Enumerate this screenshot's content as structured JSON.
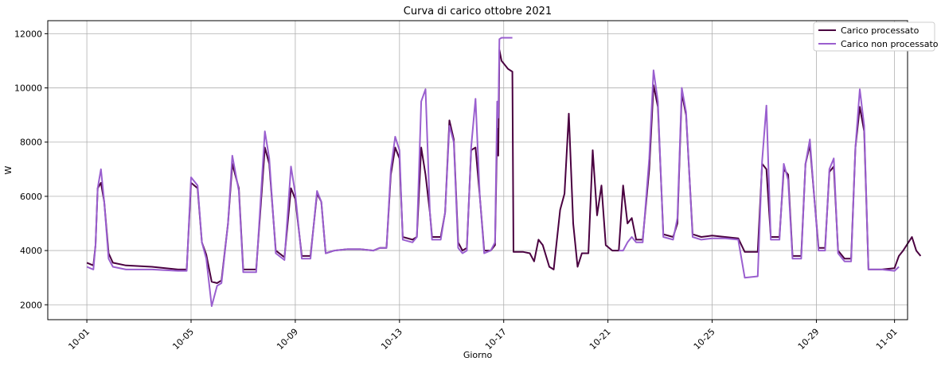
{
  "chart_data": {
    "type": "line",
    "title": "Curva di carico ottobre 2021",
    "xlabel": "Giorno",
    "ylabel": "W",
    "xlim": [
      "2021-09-29T12:00",
      "2021-11-01T12:00"
    ],
    "ylim": [
      1450,
      12480
    ],
    "x_ticks": [
      "10-01",
      "10-05",
      "10-09",
      "10-13",
      "10-17",
      "10-21",
      "10-25",
      "10-29",
      "11-01"
    ],
    "y_ticks": [
      2000,
      4000,
      6000,
      8000,
      10000,
      12000
    ],
    "grid": true,
    "legend_position": "top-right",
    "series": [
      {
        "name": "Carico processato",
        "color": "#4a0040",
        "points": [
          [
            "2021-10-01T00:00",
            3550
          ],
          [
            "2021-10-01T06:00",
            3450
          ],
          [
            "2021-10-01T08:00",
            4200
          ],
          [
            "2021-10-01T10:00",
            6300
          ],
          [
            "2021-10-01T13:00",
            6500
          ],
          [
            "2021-10-01T16:00",
            5800
          ],
          [
            "2021-10-01T20:00",
            3900
          ],
          [
            "2021-10-02T00:00",
            3550
          ],
          [
            "2021-10-02T12:00",
            3450
          ],
          [
            "2021-10-03T12:00",
            3400
          ],
          [
            "2021-10-04T12:00",
            3300
          ],
          [
            "2021-10-04T20:00",
            3300
          ],
          [
            "2021-10-05T00:00",
            6500
          ],
          [
            "2021-10-05T06:00",
            6300
          ],
          [
            "2021-10-05T10:00",
            4300
          ],
          [
            "2021-10-05T14:00",
            3850
          ],
          [
            "2021-10-05T19:00",
            2850
          ],
          [
            "2021-10-06T00:00",
            2800
          ],
          [
            "2021-10-06T04:00",
            2900
          ],
          [
            "2021-10-06T10:00",
            5000
          ],
          [
            "2021-10-06T14:00",
            7200
          ],
          [
            "2021-10-06T20:00",
            6300
          ],
          [
            "2021-10-07T00:00",
            3300
          ],
          [
            "2021-10-07T12:00",
            3300
          ],
          [
            "2021-10-07T20:00",
            7800
          ],
          [
            "2021-10-08T00:00",
            7200
          ],
          [
            "2021-10-08T06:00",
            4000
          ],
          [
            "2021-10-08T14:00",
            3750
          ],
          [
            "2021-10-08T20:00",
            6300
          ],
          [
            "2021-10-09T00:00",
            5900
          ],
          [
            "2021-10-09T06:00",
            3800
          ],
          [
            "2021-10-09T14:00",
            3800
          ],
          [
            "2021-10-09T20:00",
            6100
          ],
          [
            "2021-10-10T00:00",
            5800
          ],
          [
            "2021-10-10T04:00",
            3900
          ],
          [
            "2021-10-10T12:00",
            4000
          ],
          [
            "2021-10-11T00:00",
            4050
          ],
          [
            "2021-10-11T12:00",
            4050
          ],
          [
            "2021-10-12T00:00",
            4000
          ],
          [
            "2021-10-12T06:00",
            4100
          ],
          [
            "2021-10-12T12:00",
            4100
          ],
          [
            "2021-10-12T16:00",
            6800
          ],
          [
            "2021-10-12T20:00",
            7800
          ],
          [
            "2021-10-13T00:00",
            7400
          ],
          [
            "2021-10-13T03:00",
            4500
          ],
          [
            "2021-10-13T12:00",
            4400
          ],
          [
            "2021-10-13T16:00",
            4500
          ],
          [
            "2021-10-13T20:00",
            7800
          ],
          [
            "2021-10-14T00:00",
            6800
          ],
          [
            "2021-10-14T04:00",
            5400
          ],
          [
            "2021-10-14T06:00",
            4500
          ],
          [
            "2021-10-14T14:00",
            4500
          ],
          [
            "2021-10-14T18:00",
            5400
          ],
          [
            "2021-10-14T22:00",
            8800
          ],
          [
            "2021-10-15T02:00",
            8100
          ],
          [
            "2021-10-15T06:00",
            4300
          ],
          [
            "2021-10-15T10:00",
            4000
          ],
          [
            "2021-10-15T14:00",
            4100
          ],
          [
            "2021-10-15T18:00",
            7700
          ],
          [
            "2021-10-15T22:00",
            7800
          ],
          [
            "2021-10-16T02:00",
            6000
          ],
          [
            "2021-10-16T06:00",
            4000
          ],
          [
            "2021-10-16T12:00",
            4000
          ],
          [
            "2021-10-16T16:00",
            4200
          ],
          [
            "2021-10-16T18:00",
            8500
          ],
          [
            "2021-10-16T19:00",
            7500
          ],
          [
            "2021-10-16T20:00",
            11400
          ],
          [
            "2021-10-16T22:00",
            11000
          ],
          [
            "2021-10-17T04:00",
            10700
          ],
          [
            "2021-10-17T08:00",
            10600
          ],
          [
            "2021-10-17T09:00",
            3950
          ],
          [
            "2021-10-17T18:00",
            3950
          ],
          [
            "2021-10-18T00:00",
            3900
          ],
          [
            "2021-10-18T04:00",
            3600
          ],
          [
            "2021-10-18T08:00",
            4400
          ],
          [
            "2021-10-18T12:00",
            4200
          ],
          [
            "2021-10-18T18:00",
            3400
          ],
          [
            "2021-10-18T22:00",
            3300
          ],
          [
            "2021-10-19T04:00",
            5500
          ],
          [
            "2021-10-19T08:00",
            6100
          ],
          [
            "2021-10-19T12:00",
            9050
          ],
          [
            "2021-10-19T16:00",
            5000
          ],
          [
            "2021-10-19T20:00",
            3400
          ],
          [
            "2021-10-20T00:00",
            3900
          ],
          [
            "2021-10-20T06:00",
            3900
          ],
          [
            "2021-10-20T10:00",
            7700
          ],
          [
            "2021-10-20T14:00",
            5300
          ],
          [
            "2021-10-20T18:00",
            6400
          ],
          [
            "2021-10-20T22:00",
            4200
          ],
          [
            "2021-10-21T04:00",
            4000
          ],
          [
            "2021-10-21T10:00",
            4000
          ],
          [
            "2021-10-21T14:00",
            6400
          ],
          [
            "2021-10-21T18:00",
            5000
          ],
          [
            "2021-10-21T22:00",
            5200
          ],
          [
            "2021-10-22T02:00",
            4400
          ],
          [
            "2021-10-22T08:00",
            4400
          ],
          [
            "2021-10-22T14:00",
            7000
          ],
          [
            "2021-10-22T18:00",
            10100
          ],
          [
            "2021-10-22T22:00",
            9300
          ],
          [
            "2021-10-23T03:00",
            4600
          ],
          [
            "2021-10-23T12:00",
            4500
          ],
          [
            "2021-10-23T16:00",
            5000
          ],
          [
            "2021-10-23T20:00",
            9800
          ],
          [
            "2021-10-24T00:00",
            9000
          ],
          [
            "2021-10-24T06:00",
            4600
          ],
          [
            "2021-10-24T14:00",
            4500
          ],
          [
            "2021-10-25T00:00",
            4550
          ],
          [
            "2021-10-25T12:00",
            4500
          ],
          [
            "2021-10-26T00:00",
            4450
          ],
          [
            "2021-10-26T06:00",
            3950
          ],
          [
            "2021-10-26T18:00",
            3950
          ],
          [
            "2021-10-26T22:00",
            7200
          ],
          [
            "2021-10-27T02:00",
            7000
          ],
          [
            "2021-10-27T06:00",
            4500
          ],
          [
            "2021-10-27T14:00",
            4500
          ],
          [
            "2021-10-27T18:00",
            7000
          ],
          [
            "2021-10-27T22:00",
            6800
          ],
          [
            "2021-10-28T02:00",
            3800
          ],
          [
            "2021-10-28T10:00",
            3800
          ],
          [
            "2021-10-28T14:00",
            7200
          ],
          [
            "2021-10-28T18:00",
            7900
          ],
          [
            "2021-10-28T22:00",
            6000
          ],
          [
            "2021-10-29T02:00",
            4100
          ],
          [
            "2021-10-29T08:00",
            4100
          ],
          [
            "2021-10-29T12:00",
            6900
          ],
          [
            "2021-10-29T16:00",
            7100
          ],
          [
            "2021-10-29T20:00",
            4000
          ],
          [
            "2021-10-30T02:00",
            3700
          ],
          [
            "2021-10-30T08:00",
            3700
          ],
          [
            "2021-10-30T12:00",
            7800
          ],
          [
            "2021-10-30T16:00",
            9300
          ],
          [
            "2021-10-30T20:00",
            8400
          ],
          [
            "2021-10-31T00:00",
            3300
          ],
          [
            "2021-10-31T12:00",
            3300
          ],
          [
            "2021-11-01T00:00",
            3350
          ],
          [
            "2021-11-01T04:00",
            3800
          ],
          [
            "2021-11-01T08:00",
            4000
          ],
          [
            "2021-11-01T16:00",
            4500
          ],
          [
            "2021-11-01T20:00",
            4000
          ],
          [
            "2021-11-02T00:00",
            3800
          ]
        ]
      },
      {
        "name": "Carico non processato",
        "color": "#9a5fcf",
        "points": [
          [
            "2021-10-01T00:00",
            3400
          ],
          [
            "2021-10-01T06:00",
            3300
          ],
          [
            "2021-10-01T08:00",
            4200
          ],
          [
            "2021-10-01T10:00",
            6300
          ],
          [
            "2021-10-01T13:00",
            7000
          ],
          [
            "2021-10-01T16:00",
            5800
          ],
          [
            "2021-10-01T20:00",
            3700
          ],
          [
            "2021-10-02T00:00",
            3400
          ],
          [
            "2021-10-02T12:00",
            3300
          ],
          [
            "2021-10-03T12:00",
            3300
          ],
          [
            "2021-10-04T12:00",
            3250
          ],
          [
            "2021-10-04T20:00",
            3250
          ],
          [
            "2021-10-05T00:00",
            6700
          ],
          [
            "2021-10-05T06:00",
            6400
          ],
          [
            "2021-10-05T10:00",
            4300
          ],
          [
            "2021-10-05T14:00",
            3700
          ],
          [
            "2021-10-05T19:00",
            1950
          ],
          [
            "2021-10-06T00:00",
            2700
          ],
          [
            "2021-10-06T04:00",
            2800
          ],
          [
            "2021-10-06T10:00",
            5000
          ],
          [
            "2021-10-06T14:00",
            7500
          ],
          [
            "2021-10-06T20:00",
            6200
          ],
          [
            "2021-10-07T00:00",
            3200
          ],
          [
            "2021-10-07T12:00",
            3200
          ],
          [
            "2021-10-07T20:00",
            8400
          ],
          [
            "2021-10-08T00:00",
            7400
          ],
          [
            "2021-10-08T06:00",
            3900
          ],
          [
            "2021-10-08T14:00",
            3650
          ],
          [
            "2021-10-08T20:00",
            7100
          ],
          [
            "2021-10-09T00:00",
            6100
          ],
          [
            "2021-10-09T06:00",
            3700
          ],
          [
            "2021-10-09T14:00",
            3700
          ],
          [
            "2021-10-09T20:00",
            6200
          ],
          [
            "2021-10-10T00:00",
            5800
          ],
          [
            "2021-10-10T04:00",
            3900
          ],
          [
            "2021-10-10T12:00",
            4000
          ],
          [
            "2021-10-11T00:00",
            4050
          ],
          [
            "2021-10-11T12:00",
            4050
          ],
          [
            "2021-10-12T00:00",
            4000
          ],
          [
            "2021-10-12T06:00",
            4100
          ],
          [
            "2021-10-12T12:00",
            4100
          ],
          [
            "2021-10-12T16:00",
            7000
          ],
          [
            "2021-10-12T20:00",
            8200
          ],
          [
            "2021-10-13T00:00",
            7700
          ],
          [
            "2021-10-13T03:00",
            4400
          ],
          [
            "2021-10-13T12:00",
            4300
          ],
          [
            "2021-10-13T16:00",
            4500
          ],
          [
            "2021-10-13T20:00",
            9500
          ],
          [
            "2021-10-14T00:00",
            9950
          ],
          [
            "2021-10-14T04:00",
            5400
          ],
          [
            "2021-10-14T06:00",
            4400
          ],
          [
            "2021-10-14T14:00",
            4400
          ],
          [
            "2021-10-14T18:00",
            5400
          ],
          [
            "2021-10-14T22:00",
            8600
          ],
          [
            "2021-10-15T02:00",
            8000
          ],
          [
            "2021-10-15T06:00",
            4100
          ],
          [
            "2021-10-15T10:00",
            3900
          ],
          [
            "2021-10-15T14:00",
            4000
          ],
          [
            "2021-10-15T18:00",
            7800
          ],
          [
            "2021-10-15T22:00",
            9600
          ],
          [
            "2021-10-16T02:00",
            6000
          ],
          [
            "2021-10-16T06:00",
            3900
          ],
          [
            "2021-10-16T12:00",
            4000
          ],
          [
            "2021-10-16T16:00",
            4300
          ],
          [
            "2021-10-16T18:00",
            9500
          ],
          [
            "2021-10-16T19:00",
            8900
          ],
          [
            "2021-10-16T20:00",
            11800
          ],
          [
            "2021-10-16T22:00",
            11850
          ],
          [
            "2021-10-17T04:00",
            11850
          ],
          [
            "2021-10-17T08:00",
            11850
          ]
        ]
      },
      {
        "name": "Carico non processato",
        "color": "#9a5fcf",
        "points": [
          [
            "2021-10-21T10:00",
            4000
          ],
          [
            "2021-10-21T14:00",
            4000
          ],
          [
            "2021-10-21T18:00",
            4300
          ],
          [
            "2021-10-21T22:00",
            4500
          ],
          [
            "2021-10-22T02:00",
            4300
          ],
          [
            "2021-10-22T08:00",
            4300
          ],
          [
            "2021-10-22T14:00",
            7400
          ],
          [
            "2021-10-22T18:00",
            10650
          ],
          [
            "2021-10-22T22:00",
            9500
          ],
          [
            "2021-10-23T03:00",
            4500
          ],
          [
            "2021-10-23T12:00",
            4400
          ],
          [
            "2021-10-23T16:00",
            5200
          ],
          [
            "2021-10-23T20:00",
            10000
          ],
          [
            "2021-10-24T00:00",
            9100
          ],
          [
            "2021-10-24T06:00",
            4500
          ],
          [
            "2021-10-24T14:00",
            4400
          ],
          [
            "2021-10-25T00:00",
            4450
          ],
          [
            "2021-10-25T12:00",
            4450
          ],
          [
            "2021-10-26T00:00",
            4400
          ],
          [
            "2021-10-26T06:00",
            3000
          ],
          [
            "2021-10-26T18:00",
            3050
          ],
          [
            "2021-10-26T22:00",
            7300
          ],
          [
            "2021-10-27T02:00",
            9350
          ],
          [
            "2021-10-27T06:00",
            4400
          ],
          [
            "2021-10-27T14:00",
            4400
          ],
          [
            "2021-10-27T18:00",
            7200
          ],
          [
            "2021-10-27T22:00",
            6600
          ],
          [
            "2021-10-28T02:00",
            3700
          ],
          [
            "2021-10-28T10:00",
            3700
          ],
          [
            "2021-10-28T14:00",
            7200
          ],
          [
            "2021-10-28T18:00",
            8100
          ],
          [
            "2021-10-28T22:00",
            6000
          ],
          [
            "2021-10-29T02:00",
            4000
          ],
          [
            "2021-10-29T08:00",
            4000
          ],
          [
            "2021-10-29T12:00",
            7000
          ],
          [
            "2021-10-29T16:00",
            7400
          ],
          [
            "2021-10-29T20:00",
            3900
          ],
          [
            "2021-10-30T02:00",
            3600
          ],
          [
            "2021-10-30T08:00",
            3600
          ],
          [
            "2021-10-30T12:00",
            7800
          ],
          [
            "2021-10-30T16:00",
            9950
          ],
          [
            "2021-10-30T20:00",
            8600
          ],
          [
            "2021-10-31T00:00",
            3300
          ],
          [
            "2021-10-31T12:00",
            3300
          ],
          [
            "2021-11-01T00:00",
            3250
          ],
          [
            "2021-11-01T04:00",
            3400
          ]
        ]
      }
    ]
  }
}
